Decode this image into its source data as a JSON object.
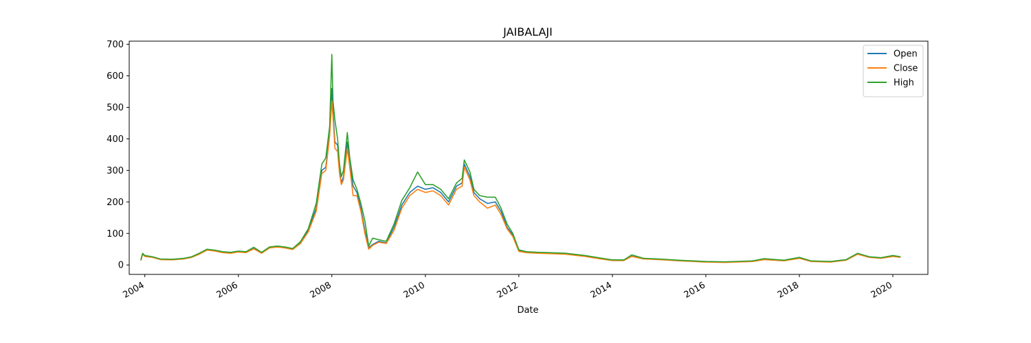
{
  "chart_data": {
    "type": "line",
    "title": "JAIBALAJI",
    "xlabel": "Date",
    "ylabel": "",
    "xlim": [
      "2003-09-01",
      "2020-10-01"
    ],
    "ylim": [
      -30,
      710
    ],
    "x_ticks": [
      "2004",
      "2006",
      "2008",
      "2010",
      "2012",
      "2014",
      "2016",
      "2018",
      "2020"
    ],
    "y_ticks": [
      0,
      100,
      200,
      300,
      400,
      500,
      600,
      700
    ],
    "legend_position": "top-right",
    "grid": false,
    "series": [
      {
        "name": "Open",
        "color": "#1f77b4",
        "points": [
          [
            "2003-12-01",
            15
          ],
          [
            "2003-12-15",
            35
          ],
          [
            "2004-01-01",
            28
          ],
          [
            "2004-03-01",
            25
          ],
          [
            "2004-05-01",
            18
          ],
          [
            "2004-08-01",
            17
          ],
          [
            "2004-11-01",
            20
          ],
          [
            "2005-01-01",
            25
          ],
          [
            "2005-03-01",
            35
          ],
          [
            "2005-05-01",
            48
          ],
          [
            "2005-07-01",
            45
          ],
          [
            "2005-09-01",
            40
          ],
          [
            "2005-11-01",
            38
          ],
          [
            "2006-01-01",
            42
          ],
          [
            "2006-03-01",
            40
          ],
          [
            "2006-05-01",
            52
          ],
          [
            "2006-07-01",
            38
          ],
          [
            "2006-09-01",
            55
          ],
          [
            "2006-11-01",
            58
          ],
          [
            "2007-01-01",
            55
          ],
          [
            "2007-03-01",
            50
          ],
          [
            "2007-05-01",
            70
          ],
          [
            "2007-07-01",
            110
          ],
          [
            "2007-09-01",
            180
          ],
          [
            "2007-10-15",
            300
          ],
          [
            "2007-11-15",
            310
          ],
          [
            "2007-12-15",
            420
          ],
          [
            "2008-01-01",
            560
          ],
          [
            "2008-01-10",
            490
          ],
          [
            "2008-01-25",
            390
          ],
          [
            "2008-02-15",
            380
          ],
          [
            "2008-03-01",
            300
          ],
          [
            "2008-03-15",
            260
          ],
          [
            "2008-04-01",
            280
          ],
          [
            "2008-05-01",
            390
          ],
          [
            "2008-05-20",
            320
          ],
          [
            "2008-06-15",
            250
          ],
          [
            "2008-07-15",
            230
          ],
          [
            "2008-08-15",
            180
          ],
          [
            "2008-09-15",
            110
          ],
          [
            "2008-10-15",
            55
          ],
          [
            "2008-11-15",
            65
          ],
          [
            "2009-01-01",
            75
          ],
          [
            "2009-03-01",
            70
          ],
          [
            "2009-05-01",
            120
          ],
          [
            "2009-07-01",
            190
          ],
          [
            "2009-09-01",
            230
          ],
          [
            "2009-11-01",
            250
          ],
          [
            "2010-01-01",
            240
          ],
          [
            "2010-03-01",
            245
          ],
          [
            "2010-05-01",
            230
          ],
          [
            "2010-07-01",
            200
          ],
          [
            "2010-09-01",
            250
          ],
          [
            "2010-10-15",
            260
          ],
          [
            "2010-11-01",
            320
          ],
          [
            "2010-12-15",
            280
          ],
          [
            "2011-01-15",
            230
          ],
          [
            "2011-03-01",
            210
          ],
          [
            "2011-05-01",
            195
          ],
          [
            "2011-07-01",
            200
          ],
          [
            "2011-08-15",
            170
          ],
          [
            "2011-10-01",
            120
          ],
          [
            "2011-11-15",
            95
          ],
          [
            "2012-01-01",
            45
          ],
          [
            "2012-03-01",
            40
          ],
          [
            "2012-06-01",
            38
          ],
          [
            "2012-09-01",
            37
          ],
          [
            "2013-01-01",
            35
          ],
          [
            "2013-06-01",
            28
          ],
          [
            "2013-10-01",
            20
          ],
          [
            "2014-01-01",
            15
          ],
          [
            "2014-04-01",
            15
          ],
          [
            "2014-06-01",
            28
          ],
          [
            "2014-09-01",
            20
          ],
          [
            "2015-01-01",
            18
          ],
          [
            "2015-06-01",
            14
          ],
          [
            "2016-01-01",
            10
          ],
          [
            "2016-06-01",
            9
          ],
          [
            "2017-01-01",
            12
          ],
          [
            "2017-04-01",
            18
          ],
          [
            "2017-09-01",
            14
          ],
          [
            "2018-01-01",
            22
          ],
          [
            "2018-04-01",
            12
          ],
          [
            "2018-09-01",
            10
          ],
          [
            "2019-01-01",
            16
          ],
          [
            "2019-04-01",
            35
          ],
          [
            "2019-07-01",
            25
          ],
          [
            "2019-10-01",
            22
          ],
          [
            "2020-01-01",
            28
          ],
          [
            "2020-03-01",
            25
          ]
        ]
      },
      {
        "name": "Close",
        "color": "#ff7f0e",
        "points": [
          [
            "2003-12-01",
            14
          ],
          [
            "2003-12-15",
            34
          ],
          [
            "2004-01-01",
            27
          ],
          [
            "2004-03-01",
            24
          ],
          [
            "2004-05-01",
            17
          ],
          [
            "2004-08-01",
            16
          ],
          [
            "2004-11-01",
            19
          ],
          [
            "2005-01-01",
            24
          ],
          [
            "2005-03-01",
            34
          ],
          [
            "2005-05-01",
            47
          ],
          [
            "2005-07-01",
            44
          ],
          [
            "2005-09-01",
            39
          ],
          [
            "2005-11-01",
            37
          ],
          [
            "2006-01-01",
            41
          ],
          [
            "2006-03-01",
            39
          ],
          [
            "2006-05-01",
            51
          ],
          [
            "2006-07-01",
            37
          ],
          [
            "2006-09-01",
            54
          ],
          [
            "2006-11-01",
            57
          ],
          [
            "2007-01-01",
            54
          ],
          [
            "2007-03-01",
            49
          ],
          [
            "2007-05-01",
            68
          ],
          [
            "2007-07-01",
            105
          ],
          [
            "2007-09-01",
            170
          ],
          [
            "2007-10-15",
            290
          ],
          [
            "2007-11-15",
            300
          ],
          [
            "2007-12-15",
            410
          ],
          [
            "2008-01-01",
            520
          ],
          [
            "2008-01-10",
            470
          ],
          [
            "2008-01-25",
            370
          ],
          [
            "2008-02-15",
            360
          ],
          [
            "2008-03-01",
            290
          ],
          [
            "2008-03-15",
            255
          ],
          [
            "2008-04-01",
            270
          ],
          [
            "2008-05-01",
            370
          ],
          [
            "2008-05-20",
            310
          ],
          [
            "2008-06-15",
            220
          ],
          [
            "2008-07-15",
            220
          ],
          [
            "2008-08-15",
            170
          ],
          [
            "2008-09-15",
            100
          ],
          [
            "2008-10-15",
            50
          ],
          [
            "2008-11-15",
            62
          ],
          [
            "2009-01-01",
            72
          ],
          [
            "2009-03-01",
            68
          ],
          [
            "2009-05-01",
            110
          ],
          [
            "2009-07-01",
            180
          ],
          [
            "2009-09-01",
            220
          ],
          [
            "2009-11-01",
            240
          ],
          [
            "2010-01-01",
            230
          ],
          [
            "2010-03-01",
            235
          ],
          [
            "2010-05-01",
            220
          ],
          [
            "2010-07-01",
            190
          ],
          [
            "2010-09-01",
            240
          ],
          [
            "2010-10-15",
            250
          ],
          [
            "2010-11-01",
            310
          ],
          [
            "2010-12-15",
            270
          ],
          [
            "2011-01-15",
            220
          ],
          [
            "2011-03-01",
            200
          ],
          [
            "2011-05-01",
            180
          ],
          [
            "2011-07-01",
            190
          ],
          [
            "2011-08-15",
            160
          ],
          [
            "2011-10-01",
            115
          ],
          [
            "2011-11-15",
            90
          ],
          [
            "2012-01-01",
            43
          ],
          [
            "2012-03-01",
            39
          ],
          [
            "2012-06-01",
            37
          ],
          [
            "2012-09-01",
            36
          ],
          [
            "2013-01-01",
            34
          ],
          [
            "2013-06-01",
            27
          ],
          [
            "2013-10-01",
            19
          ],
          [
            "2014-01-01",
            14
          ],
          [
            "2014-04-01",
            14
          ],
          [
            "2014-06-01",
            27
          ],
          [
            "2014-09-01",
            19
          ],
          [
            "2015-01-01",
            17
          ],
          [
            "2015-06-01",
            13
          ],
          [
            "2016-01-01",
            9
          ],
          [
            "2016-06-01",
            8
          ],
          [
            "2017-01-01",
            11
          ],
          [
            "2017-04-01",
            17
          ],
          [
            "2017-09-01",
            13
          ],
          [
            "2018-01-01",
            21
          ],
          [
            "2018-04-01",
            11
          ],
          [
            "2018-09-01",
            9
          ],
          [
            "2019-01-01",
            15
          ],
          [
            "2019-04-01",
            34
          ],
          [
            "2019-07-01",
            24
          ],
          [
            "2019-10-01",
            21
          ],
          [
            "2020-01-01",
            27
          ],
          [
            "2020-03-01",
            24
          ]
        ]
      },
      {
        "name": "High",
        "color": "#2ca02c",
        "points": [
          [
            "2003-12-01",
            16
          ],
          [
            "2003-12-15",
            37
          ],
          [
            "2004-01-01",
            30
          ],
          [
            "2004-03-01",
            26
          ],
          [
            "2004-05-01",
            19
          ],
          [
            "2004-08-01",
            18
          ],
          [
            "2004-11-01",
            21
          ],
          [
            "2005-01-01",
            26
          ],
          [
            "2005-03-01",
            37
          ],
          [
            "2005-05-01",
            50
          ],
          [
            "2005-07-01",
            47
          ],
          [
            "2005-09-01",
            42
          ],
          [
            "2005-11-01",
            40
          ],
          [
            "2006-01-01",
            44
          ],
          [
            "2006-03-01",
            42
          ],
          [
            "2006-05-01",
            56
          ],
          [
            "2006-07-01",
            40
          ],
          [
            "2006-09-01",
            57
          ],
          [
            "2006-11-01",
            60
          ],
          [
            "2007-01-01",
            57
          ],
          [
            "2007-03-01",
            52
          ],
          [
            "2007-05-01",
            74
          ],
          [
            "2007-07-01",
            115
          ],
          [
            "2007-09-01",
            195
          ],
          [
            "2007-10-15",
            320
          ],
          [
            "2007-11-15",
            340
          ],
          [
            "2007-12-15",
            440
          ],
          [
            "2008-01-01",
            668
          ],
          [
            "2008-01-10",
            520
          ],
          [
            "2008-01-25",
            460
          ],
          [
            "2008-02-15",
            400
          ],
          [
            "2008-03-01",
            320
          ],
          [
            "2008-03-15",
            280
          ],
          [
            "2008-04-01",
            300
          ],
          [
            "2008-05-01",
            420
          ],
          [
            "2008-05-20",
            340
          ],
          [
            "2008-06-15",
            270
          ],
          [
            "2008-07-15",
            240
          ],
          [
            "2008-08-15",
            195
          ],
          [
            "2008-09-15",
            140
          ],
          [
            "2008-10-15",
            60
          ],
          [
            "2008-11-15",
            85
          ],
          [
            "2009-01-01",
            80
          ],
          [
            "2009-03-01",
            75
          ],
          [
            "2009-05-01",
            130
          ],
          [
            "2009-07-01",
            205
          ],
          [
            "2009-09-01",
            245
          ],
          [
            "2009-11-01",
            295
          ],
          [
            "2010-01-01",
            255
          ],
          [
            "2010-03-01",
            255
          ],
          [
            "2010-05-01",
            240
          ],
          [
            "2010-07-01",
            210
          ],
          [
            "2010-09-01",
            260
          ],
          [
            "2010-10-15",
            275
          ],
          [
            "2010-11-01",
            333
          ],
          [
            "2010-12-15",
            295
          ],
          [
            "2011-01-15",
            240
          ],
          [
            "2011-03-01",
            220
          ],
          [
            "2011-05-01",
            215
          ],
          [
            "2011-07-01",
            215
          ],
          [
            "2011-08-15",
            180
          ],
          [
            "2011-10-01",
            130
          ],
          [
            "2011-11-15",
            100
          ],
          [
            "2012-01-01",
            48
          ],
          [
            "2012-03-01",
            42
          ],
          [
            "2012-06-01",
            40
          ],
          [
            "2012-09-01",
            39
          ],
          [
            "2013-01-01",
            37
          ],
          [
            "2013-06-01",
            30
          ],
          [
            "2013-10-01",
            22
          ],
          [
            "2014-01-01",
            16
          ],
          [
            "2014-04-01",
            16
          ],
          [
            "2014-06-01",
            32
          ],
          [
            "2014-09-01",
            21
          ],
          [
            "2015-01-01",
            19
          ],
          [
            "2015-06-01",
            15
          ],
          [
            "2016-01-01",
            11
          ],
          [
            "2016-06-01",
            10
          ],
          [
            "2017-01-01",
            13
          ],
          [
            "2017-04-01",
            20
          ],
          [
            "2017-09-01",
            15
          ],
          [
            "2018-01-01",
            24
          ],
          [
            "2018-04-01",
            13
          ],
          [
            "2018-09-01",
            11
          ],
          [
            "2019-01-01",
            17
          ],
          [
            "2019-04-01",
            37
          ],
          [
            "2019-07-01",
            26
          ],
          [
            "2019-10-01",
            23
          ],
          [
            "2020-01-01",
            30
          ],
          [
            "2020-03-01",
            26
          ]
        ]
      }
    ]
  }
}
